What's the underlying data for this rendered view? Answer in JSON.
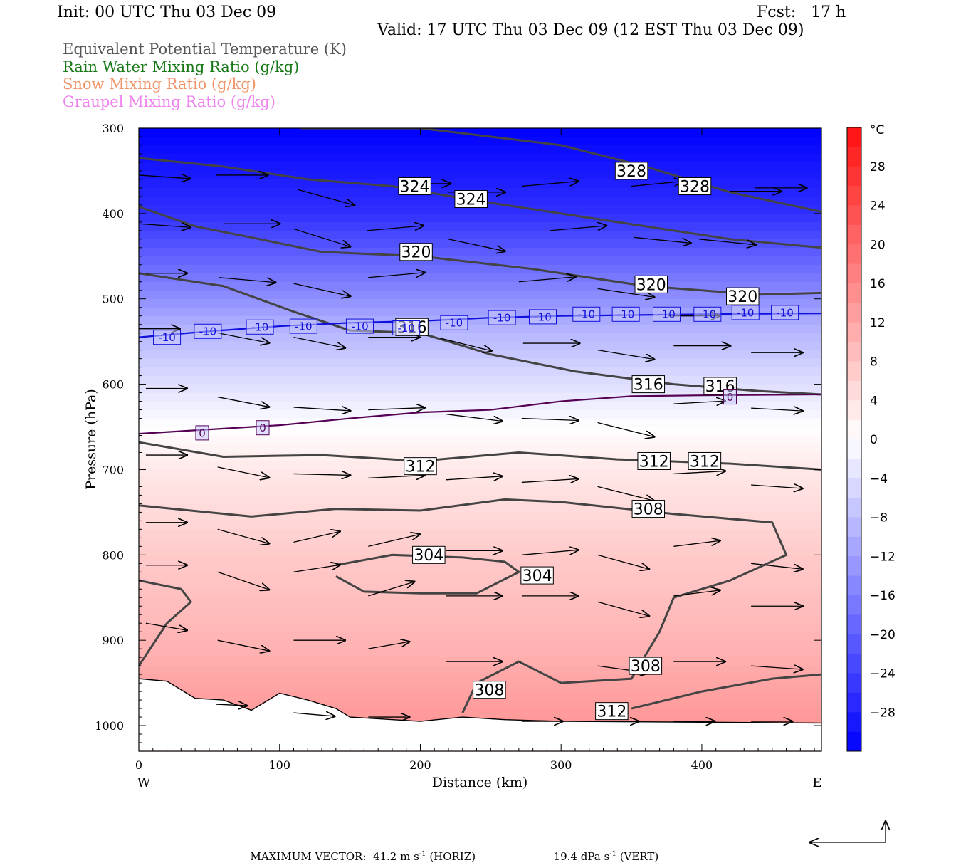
{
  "header": {
    "init": "Init: 00 UTC Thu 03 Dec 09",
    "fcst": "Fcst:   17 h",
    "valid": "Valid: 17 UTC Thu 03 Dec 09 (12 EST Thu 03 Dec 09)"
  },
  "legend": [
    {
      "label": "Equivalent Potential Temperature (K)",
      "color": "#555555"
    },
    {
      "label": "Rain Water Mixing Ratio (g/kg)",
      "color": "#1a7a1a"
    },
    {
      "label": "Snow Mixing Ratio (g/kg)",
      "color": "#f0956a"
    },
    {
      "label": "Graupel Mixing Ratio (g/kg)",
      "color": "#ee82ee"
    }
  ],
  "footer": {
    "max_vector_label": "MAXIMUM VECTOR:",
    "horiz_value": "41.2 m s",
    "horiz_exp": "-1",
    "horiz_tag": "(HORIZ)",
    "vert_value": "19.4 dPa s",
    "vert_exp": "-1",
    "vert_tag": "(VERT)"
  },
  "chart_data": {
    "type": "heatmap",
    "description_field": "temperature",
    "xlabel": "Distance (km)",
    "ylabel": "Pressure (hPa)",
    "xlim": [
      0,
      485
    ],
    "ylim": [
      1030,
      300
    ],
    "x_ticks": [
      0,
      100,
      200,
      300,
      400
    ],
    "y_ticks": [
      300,
      400,
      500,
      600,
      700,
      800,
      900,
      1000
    ],
    "x_end_labels": {
      "left": "W",
      "right": "E"
    },
    "colorbar": {
      "unit": "°C",
      "ticks": [
        28,
        24,
        20,
        16,
        12,
        8,
        4,
        0,
        -4,
        -8,
        -12,
        -16,
        -20,
        -24,
        -28
      ],
      "range": [
        -32,
        32
      ]
    },
    "temperature_levels": [
      {
        "p": 300,
        "t": -32
      },
      {
        "p": 400,
        "t": -26
      },
      {
        "p": 500,
        "t": -14
      },
      {
        "p": 530,
        "t": -10
      },
      {
        "p": 600,
        "t": -4
      },
      {
        "p": 650,
        "t": 0
      },
      {
        "p": 700,
        "t": 3
      },
      {
        "p": 800,
        "t": 7
      },
      {
        "p": 900,
        "t": 10
      },
      {
        "p": 1000,
        "t": 14
      }
    ],
    "theta_e_contours": [
      {
        "value": 328,
        "points": [
          [
            115,
            300
          ],
          [
            200,
            300
          ],
          [
            300,
            320
          ],
          [
            360,
            345
          ],
          [
            420,
            375
          ],
          [
            485,
            398
          ]
        ],
        "labels": [
          [
            350,
            350
          ],
          [
            395,
            368
          ]
        ]
      },
      {
        "value": 324,
        "points": [
          [
            0,
            335
          ],
          [
            60,
            345
          ],
          [
            120,
            360
          ],
          [
            180,
            368
          ],
          [
            240,
            385
          ],
          [
            300,
            400
          ],
          [
            360,
            415
          ],
          [
            420,
            430
          ],
          [
            485,
            440
          ]
        ],
        "labels": [
          [
            196,
            368
          ],
          [
            236,
            383
          ]
        ]
      },
      {
        "value": 320,
        "points": [
          [
            0,
            392
          ],
          [
            40,
            415
          ],
          [
            80,
            428
          ],
          [
            130,
            445
          ],
          [
            200,
            450
          ],
          [
            280,
            465
          ],
          [
            360,
            485
          ],
          [
            440,
            495
          ],
          [
            485,
            493
          ]
        ],
        "labels": [
          [
            197,
            445
          ],
          [
            364,
            483
          ],
          [
            429,
            497
          ]
        ]
      },
      {
        "value": 316,
        "points": [
          [
            0,
            470
          ],
          [
            60,
            485
          ],
          [
            110,
            515
          ],
          [
            150,
            537
          ],
          [
            200,
            540
          ],
          [
            250,
            565
          ],
          [
            310,
            585
          ],
          [
            380,
            600
          ],
          [
            440,
            608
          ],
          [
            485,
            612
          ]
        ],
        "labels": [
          [
            194,
            533
          ],
          [
            362,
            600
          ],
          [
            413,
            602
          ]
        ]
      },
      {
        "value": 312,
        "points": [
          [
            0,
            668
          ],
          [
            60,
            685
          ],
          [
            130,
            683
          ],
          [
            200,
            690
          ],
          [
            270,
            680
          ],
          [
            340,
            688
          ],
          [
            420,
            693
          ],
          [
            485,
            700
          ]
        ],
        "labels": [
          [
            200,
            696
          ],
          [
            366,
            690
          ],
          [
            402,
            690
          ]
        ]
      },
      {
        "value": 308,
        "points": [
          [
            0,
            742
          ],
          [
            80,
            755
          ],
          [
            140,
            746
          ],
          [
            200,
            748
          ],
          [
            260,
            735
          ],
          [
            300,
            738
          ],
          [
            380,
            752
          ],
          [
            450,
            762
          ],
          [
            460,
            800
          ],
          [
            420,
            830
          ],
          [
            380,
            850
          ],
          [
            370,
            890
          ],
          [
            350,
            945
          ],
          [
            300,
            950
          ],
          [
            270,
            925
          ],
          [
            240,
            950
          ],
          [
            230,
            985
          ]
        ],
        "labels": [
          [
            362,
            746
          ],
          [
            360,
            930
          ],
          [
            249,
            958
          ]
        ]
      },
      {
        "value": 304,
        "points": [
          [
            140,
            812
          ],
          [
            180,
            800
          ],
          [
            230,
            803
          ],
          [
            260,
            808
          ],
          [
            270,
            820
          ],
          [
            240,
            845
          ],
          [
            200,
            845
          ],
          [
            160,
            843
          ],
          [
            140,
            825
          ]
        ],
        "labels": [
          [
            206,
            800
          ],
          [
            283,
            824
          ]
        ]
      },
      {
        "value": 312,
        "points": [
          [
            350,
            980
          ],
          [
            400,
            960
          ],
          [
            450,
            945
          ],
          [
            485,
            940
          ]
        ],
        "labels": [
          [
            336,
            983
          ]
        ]
      },
      {
        "value": 304,
        "points": [
          [
            0,
            830
          ],
          [
            30,
            840
          ],
          [
            37,
            855
          ],
          [
            20,
            880
          ],
          [
            0,
            930
          ]
        ],
        "labels": []
      }
    ],
    "isotherms": [
      {
        "value": -10,
        "color": "#1010dd",
        "points": [
          [
            0,
            545
          ],
          [
            50,
            538
          ],
          [
            100,
            532
          ],
          [
            150,
            528
          ],
          [
            200,
            526
          ],
          [
            250,
            522
          ],
          [
            300,
            520
          ],
          [
            350,
            519
          ],
          [
            400,
            518
          ],
          [
            485,
            517
          ]
        ],
        "labels": [
          [
            20,
            545
          ],
          [
            49,
            538
          ],
          [
            86,
            533
          ],
          [
            117,
            532
          ],
          [
            157,
            532
          ],
          [
            190,
            534
          ],
          [
            224,
            528
          ],
          [
            258,
            522
          ],
          [
            287,
            521
          ],
          [
            318,
            518
          ],
          [
            346,
            518
          ],
          [
            375,
            518
          ],
          [
            404,
            518
          ],
          [
            431,
            516
          ],
          [
            459,
            516
          ]
        ]
      },
      {
        "value": 0,
        "color": "#550055",
        "points": [
          [
            0,
            658
          ],
          [
            50,
            653
          ],
          [
            100,
            648
          ],
          [
            150,
            640
          ],
          [
            200,
            633
          ],
          [
            250,
            630
          ],
          [
            300,
            620
          ],
          [
            350,
            614
          ],
          [
            400,
            613
          ],
          [
            485,
            612
          ]
        ],
        "labels": [
          [
            45,
            657
          ],
          [
            88,
            651
          ],
          [
            420,
            615
          ]
        ]
      }
    ],
    "terrain": [
      [
        0,
        945
      ],
      [
        20,
        948
      ],
      [
        40,
        968
      ],
      [
        60,
        970
      ],
      [
        80,
        982
      ],
      [
        100,
        962
      ],
      [
        120,
        970
      ],
      [
        140,
        980
      ],
      [
        150,
        990
      ],
      [
        170,
        992
      ],
      [
        200,
        995
      ],
      [
        230,
        990
      ],
      [
        260,
        993
      ],
      [
        300,
        995
      ],
      [
        400,
        996
      ],
      [
        485,
        997
      ]
    ],
    "wind_vectors": [
      {
        "p": 355,
        "x": 0,
        "u": 50,
        "v": 5
      },
      {
        "p": 355,
        "x": 55,
        "u": 50,
        "v": 0
      },
      {
        "p": 372,
        "x": 113,
        "u": 55,
        "v": 22
      },
      {
        "p": 365,
        "x": 185,
        "u": 50,
        "v": 0
      },
      {
        "p": 375,
        "x": 220,
        "u": 55,
        "v": 0
      },
      {
        "p": 368,
        "x": 272,
        "u": 55,
        "v": -7
      },
      {
        "p": 368,
        "x": 350,
        "u": 50,
        "v": -7
      },
      {
        "p": 374,
        "x": 420,
        "u": 50,
        "v": 0
      },
      {
        "p": 370,
        "x": 438,
        "u": 50,
        "v": 0
      },
      {
        "p": 412,
        "x": 0,
        "u": 50,
        "v": 5
      },
      {
        "p": 412,
        "x": 60,
        "u": 55,
        "v": 0
      },
      {
        "p": 418,
        "x": 110,
        "u": 55,
        "v": 25
      },
      {
        "p": 420,
        "x": 162,
        "u": 55,
        "v": -7
      },
      {
        "p": 430,
        "x": 220,
        "u": 55,
        "v": 17
      },
      {
        "p": 420,
        "x": 292,
        "u": 55,
        "v": -7
      },
      {
        "p": 428,
        "x": 352,
        "u": 55,
        "v": 8
      },
      {
        "p": 430,
        "x": 398,
        "u": 55,
        "v": 8
      },
      {
        "p": 470,
        "x": 5,
        "u": 40,
        "v": 0
      },
      {
        "p": 475,
        "x": 57,
        "u": 55,
        "v": 7
      },
      {
        "p": 482,
        "x": 110,
        "u": 55,
        "v": 18
      },
      {
        "p": 475,
        "x": 163,
        "u": 55,
        "v": -7
      },
      {
        "p": 480,
        "x": 270,
        "u": 55,
        "v": -7
      },
      {
        "p": 488,
        "x": 326,
        "u": 55,
        "v": 12
      },
      {
        "p": 520,
        "x": 376,
        "u": 50,
        "v": 0
      },
      {
        "p": 535,
        "x": 0,
        "u": 40,
        "v": 0
      },
      {
        "p": 540,
        "x": 56,
        "u": 50,
        "v": 14
      },
      {
        "p": 545,
        "x": 110,
        "u": 50,
        "v": 15
      },
      {
        "p": 545,
        "x": 163,
        "u": 50,
        "v": 0
      },
      {
        "p": 546,
        "x": 214,
        "u": 50,
        "v": 18
      },
      {
        "p": 552,
        "x": 273,
        "u": 55,
        "v": 0
      },
      {
        "p": 560,
        "x": 326,
        "u": 55,
        "v": 13
      },
      {
        "p": 555,
        "x": 380,
        "u": 55,
        "v": 0
      },
      {
        "p": 563,
        "x": 435,
        "u": 50,
        "v": 0
      },
      {
        "p": 605,
        "x": 5,
        "u": 40,
        "v": 0
      },
      {
        "p": 615,
        "x": 56,
        "u": 50,
        "v": 14
      },
      {
        "p": 627,
        "x": 110,
        "u": 55,
        "v": 5
      },
      {
        "p": 630,
        "x": 163,
        "u": 55,
        "v": -3
      },
      {
        "p": 635,
        "x": 218,
        "u": 55,
        "v": 10
      },
      {
        "p": 640,
        "x": 272,
        "u": 55,
        "v": 3
      },
      {
        "p": 645,
        "x": 326,
        "u": 55,
        "v": 20
      },
      {
        "p": 623,
        "x": 380,
        "u": 50,
        "v": -4
      },
      {
        "p": 628,
        "x": 435,
        "u": 50,
        "v": 4
      },
      {
        "p": 683,
        "x": 5,
        "u": 40,
        "v": 0
      },
      {
        "p": 697,
        "x": 56,
        "u": 50,
        "v": 15
      },
      {
        "p": 705,
        "x": 110,
        "u": 55,
        "v": 2
      },
      {
        "p": 710,
        "x": 163,
        "u": 55,
        "v": -4
      },
      {
        "p": 712,
        "x": 218,
        "u": 55,
        "v": -5
      },
      {
        "p": 715,
        "x": 272,
        "u": 55,
        "v": -5
      },
      {
        "p": 720,
        "x": 326,
        "u": 55,
        "v": 20
      },
      {
        "p": 705,
        "x": 380,
        "u": 50,
        "v": -4
      },
      {
        "p": 718,
        "x": 435,
        "u": 50,
        "v": 5
      },
      {
        "p": 762,
        "x": 5,
        "u": 40,
        "v": 0
      },
      {
        "p": 770,
        "x": 56,
        "u": 50,
        "v": 20
      },
      {
        "p": 785,
        "x": 110,
        "u": 45,
        "v": -15
      },
      {
        "p": 790,
        "x": 163,
        "u": 50,
        "v": -17
      },
      {
        "p": 795,
        "x": 218,
        "u": 55,
        "v": 0
      },
      {
        "p": 800,
        "x": 272,
        "u": 55,
        "v": -7
      },
      {
        "p": 800,
        "x": 326,
        "u": 50,
        "v": 20
      },
      {
        "p": 790,
        "x": 380,
        "u": 45,
        "v": -8
      },
      {
        "p": 810,
        "x": 435,
        "u": 50,
        "v": 8
      },
      {
        "p": 812,
        "x": 5,
        "u": 40,
        "v": 0
      },
      {
        "p": 820,
        "x": 56,
        "u": 50,
        "v": 25
      },
      {
        "p": 820,
        "x": 110,
        "u": 45,
        "v": -10
      },
      {
        "p": 848,
        "x": 163,
        "u": 45,
        "v": -20
      },
      {
        "p": 848,
        "x": 218,
        "u": 55,
        "v": 0
      },
      {
        "p": 848,
        "x": 272,
        "u": 55,
        "v": 0
      },
      {
        "p": 855,
        "x": 326,
        "u": 50,
        "v": 20
      },
      {
        "p": 848,
        "x": 380,
        "u": 45,
        "v": -8
      },
      {
        "p": 860,
        "x": 435,
        "u": 50,
        "v": 0
      },
      {
        "p": 880,
        "x": 5,
        "u": 40,
        "v": 10
      },
      {
        "p": 900,
        "x": 56,
        "u": 50,
        "v": 15
      },
      {
        "p": 900,
        "x": 110,
        "u": 50,
        "v": 0
      },
      {
        "p": 910,
        "x": 163,
        "u": 40,
        "v": -10
      },
      {
        "p": 925,
        "x": 218,
        "u": 55,
        "v": 0
      },
      {
        "p": 930,
        "x": 326,
        "u": 50,
        "v": 10
      },
      {
        "p": 925,
        "x": 380,
        "u": 50,
        "v": 0
      },
      {
        "p": 930,
        "x": 435,
        "u": 50,
        "v": 5
      },
      {
        "p": 975,
        "x": 55,
        "u": 30,
        "v": 2
      },
      {
        "p": 985,
        "x": 110,
        "u": 40,
        "v": 5
      },
      {
        "p": 990,
        "x": 163,
        "u": 40,
        "v": 0
      },
      {
        "p": 995,
        "x": 272,
        "u": 40,
        "v": 0
      },
      {
        "p": 995,
        "x": 326,
        "u": 40,
        "v": 0
      },
      {
        "p": 995,
        "x": 380,
        "u": 40,
        "v": 0
      },
      {
        "p": 995,
        "x": 435,
        "u": 40,
        "v": 0
      }
    ]
  }
}
